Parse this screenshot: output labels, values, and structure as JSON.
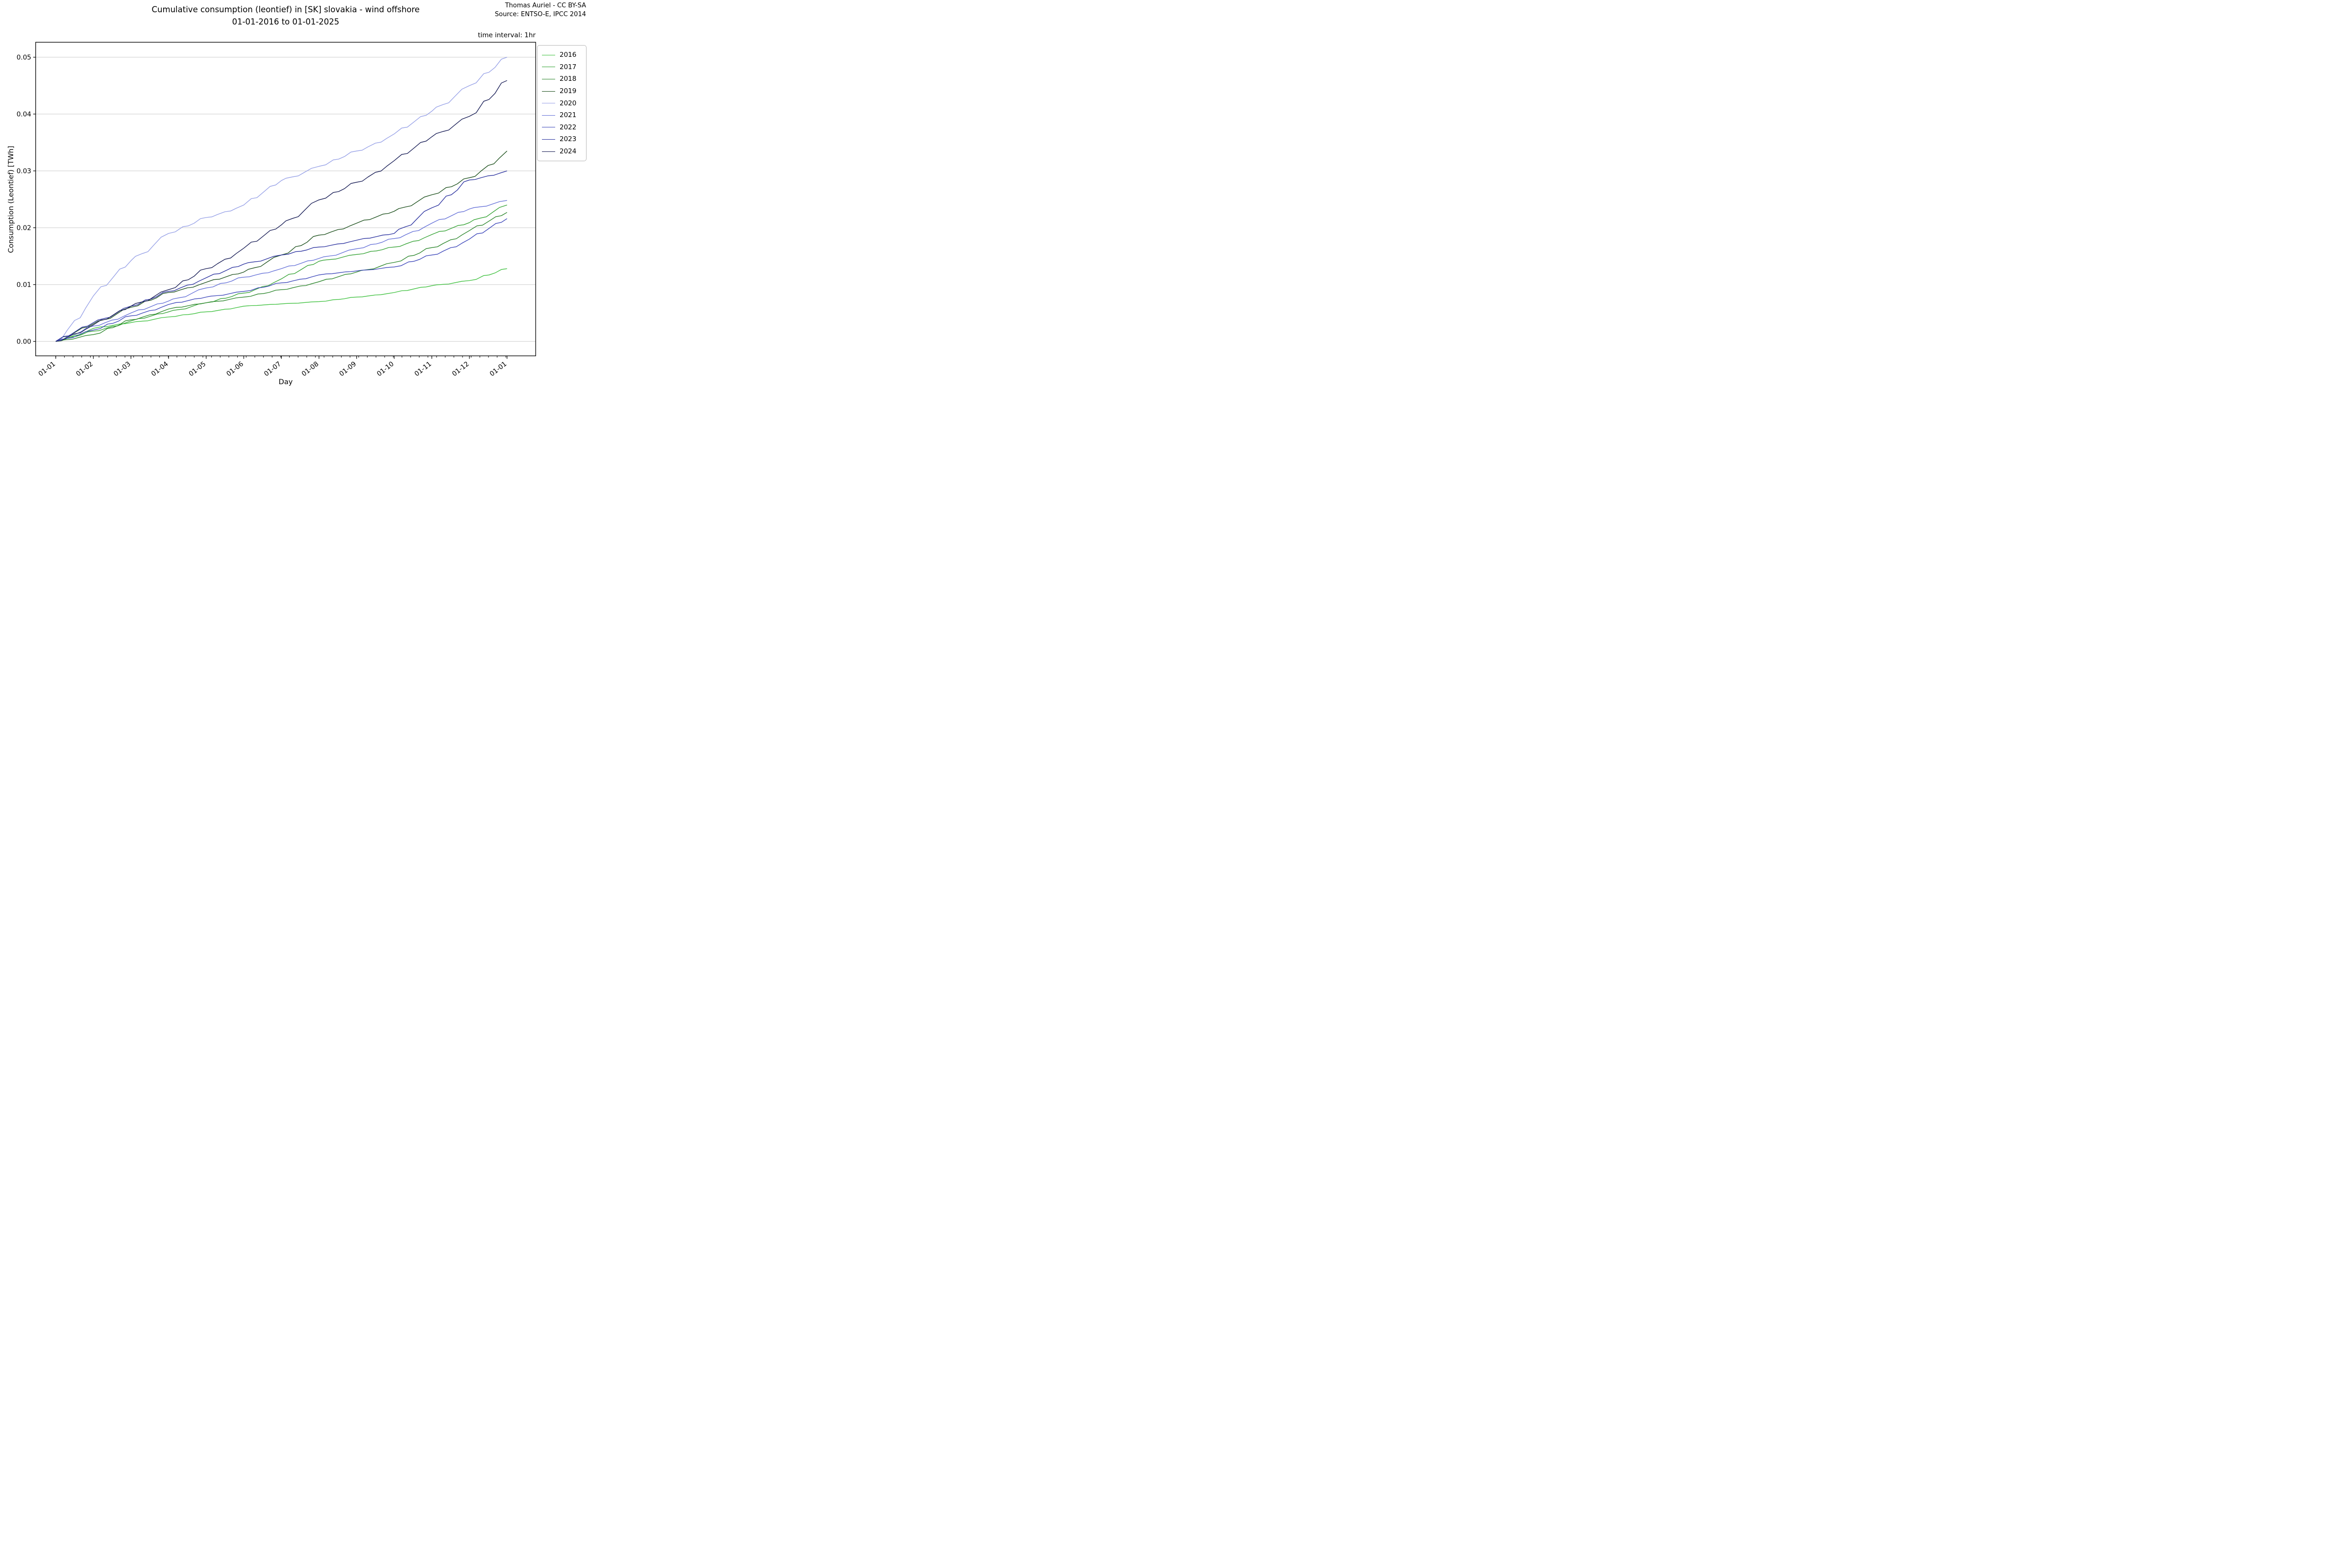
{
  "title": {
    "line1": "Cumulative consumption (leontief) in [SK] slovakia - wind offshore",
    "line2": "01-01-2016 to 01-01-2025"
  },
  "attribution": {
    "line1": "Thomas Auriel - CC BY-SA",
    "line2": "Source: ENTSO-E, IPCC 2014"
  },
  "annotation": {
    "time_interval": "time interval: 1hr"
  },
  "axes": {
    "xlabel": "Day",
    "ylabel": "Consumption (Leontief) [TWh]"
  },
  "colors": {
    "grid": "#cdcdcd",
    "spine": "#000000",
    "background": "#ffffff"
  },
  "chart_data": {
    "type": "line",
    "title": "Cumulative consumption (leontief) in [SK] slovakia - wind offshore 01-01-2016 to 01-01-2025",
    "xlabel": "Day",
    "ylabel": "Consumption (Leontief) [TWh]",
    "x_tick_labels": [
      "01-01",
      "01-02",
      "01-03",
      "01-04",
      "01-05",
      "01-06",
      "01-07",
      "01-08",
      "01-09",
      "01-10",
      "01-11",
      "01-12",
      "01-01"
    ],
    "y_tick_labels": [
      "0.00",
      "0.01",
      "0.02",
      "0.03",
      "0.04",
      "0.05"
    ],
    "y_ticks": [
      0.0,
      0.01,
      0.02,
      0.03,
      0.04,
      0.05
    ],
    "ylim": [
      -0.0046,
      0.0523
    ],
    "grid": "horizontal",
    "legend_position": "outside upper right",
    "x_unit": "first day of each month, one full year, hourly cumulative data",
    "series": [
      {
        "name": "2016",
        "color": "#3fc13f",
        "monthly_values_twh": [
          0,
          0.0023,
          0.0033,
          0.0043,
          0.0052,
          0.0062,
          0.0066,
          0.007,
          0.0078,
          0.0086,
          0.0098,
          0.0107,
          0.0128
        ]
      },
      {
        "name": "2017",
        "color": "#35a335",
        "monthly_values_twh": [
          0,
          0.0018,
          0.0036,
          0.0052,
          0.0068,
          0.0085,
          0.011,
          0.0141,
          0.0153,
          0.0166,
          0.0188,
          0.0209,
          0.024
        ]
      },
      {
        "name": "2018",
        "color": "#2c862c",
        "monthly_values_twh": [
          0,
          0.0012,
          0.0038,
          0.0057,
          0.0068,
          0.0078,
          0.0091,
          0.0105,
          0.0122,
          0.0139,
          0.0165,
          0.0195,
          0.0227
        ]
      },
      {
        "name": "2019",
        "color": "#1e511e",
        "monthly_values_twh": [
          0,
          0.0031,
          0.006,
          0.0086,
          0.0104,
          0.0122,
          0.0152,
          0.0187,
          0.0208,
          0.0229,
          0.0258,
          0.0288,
          0.0335
        ]
      },
      {
        "name": "2020",
        "color": "#97a1e7",
        "monthly_values_twh": [
          0,
          0.008,
          0.0142,
          0.019,
          0.0218,
          0.024,
          0.0283,
          0.0308,
          0.0335,
          0.0365,
          0.0405,
          0.045,
          0.05
        ]
      },
      {
        "name": "2021",
        "color": "#6571d8",
        "monthly_values_twh": [
          0,
          0.0027,
          0.005,
          0.0071,
          0.0094,
          0.0113,
          0.0128,
          0.0146,
          0.0163,
          0.0181,
          0.0208,
          0.0233,
          0.0248
        ]
      },
      {
        "name": "2022",
        "color": "#3d47ba",
        "monthly_values_twh": [
          0,
          0.002,
          0.0045,
          0.0065,
          0.0078,
          0.0088,
          0.0103,
          0.0117,
          0.0124,
          0.0131,
          0.0152,
          0.018,
          0.0216
        ]
      },
      {
        "name": "2023",
        "color": "#2b329f",
        "monthly_values_twh": [
          0,
          0.0033,
          0.0062,
          0.0088,
          0.0112,
          0.0136,
          0.0152,
          0.0166,
          0.0178,
          0.019,
          0.0235,
          0.0284,
          0.03
        ]
      },
      {
        "name": "2024",
        "color": "#171c55",
        "monthly_values_twh": [
          0,
          0.0029,
          0.0062,
          0.0091,
          0.0128,
          0.0164,
          0.0205,
          0.0249,
          0.028,
          0.0318,
          0.036,
          0.0396,
          0.0459
        ]
      }
    ]
  }
}
